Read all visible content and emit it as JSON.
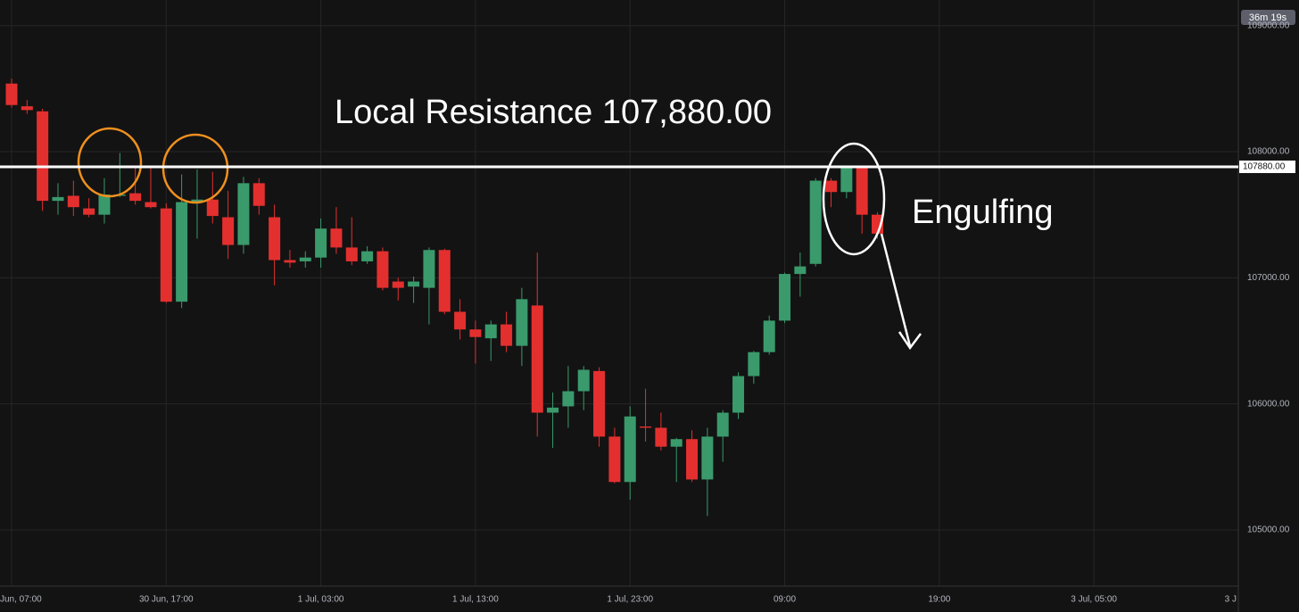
{
  "chart_data": {
    "type": "candlestick",
    "x": [
      0,
      1,
      2,
      3,
      4,
      5,
      6,
      7,
      8,
      9,
      10,
      11,
      12,
      13,
      14,
      15,
      16,
      17,
      18,
      19,
      20,
      21,
      22,
      23,
      24,
      25,
      26,
      27,
      28,
      29,
      30,
      31,
      32,
      33,
      34,
      35,
      36,
      37,
      38,
      39,
      40,
      41,
      42,
      43,
      44,
      45,
      46,
      47,
      48,
      49,
      50,
      51,
      52,
      53,
      54,
      55,
      56
    ],
    "open": [
      108540,
      108360,
      108320,
      107610,
      107650,
      107550,
      107500,
      107650,
      107670,
      107600,
      107550,
      106810,
      107600,
      107620,
      107480,
      107260,
      107750,
      107480,
      107140,
      107130,
      107160,
      107390,
      107240,
      107130,
      107210,
      106970,
      106930,
      106920,
      107220,
      106730,
      106590,
      106520,
      106630,
      106460,
      106780,
      105930,
      105980,
      106100,
      106260,
      105740,
      105380,
      105820,
      105810,
      105660,
      105720,
      105400,
      105740,
      105930,
      106220,
      106410,
      106660,
      107030,
      107110,
      107770,
      107680,
      107870,
      107500
    ],
    "high": [
      108580,
      108410,
      108340,
      107750,
      107770,
      107630,
      107790,
      107990,
      107870,
      107890,
      107590,
      107820,
      107860,
      107840,
      107690,
      107800,
      107790,
      107580,
      107220,
      107210,
      107470,
      107560,
      107480,
      107250,
      107240,
      107000,
      107010,
      107240,
      107230,
      106830,
      106660,
      106660,
      106730,
      106920,
      107200,
      106090,
      106300,
      106300,
      106290,
      105810,
      105980,
      106120,
      105930,
      105730,
      105790,
      105810,
      105950,
      106250,
      106420,
      106700,
      107040,
      107200,
      107790,
      107790,
      107890,
      107890,
      107520
    ],
    "low": [
      108350,
      108300,
      107530,
      107500,
      107490,
      107480,
      107430,
      107640,
      107580,
      107550,
      106800,
      106760,
      107310,
      107430,
      107150,
      107190,
      107500,
      106940,
      107080,
      107080,
      107080,
      107190,
      107100,
      107110,
      106900,
      106820,
      106800,
      106630,
      106710,
      106510,
      106320,
      106340,
      106410,
      106300,
      105740,
      105650,
      105810,
      105950,
      105660,
      105370,
      105240,
      105700,
      105630,
      105380,
      105380,
      105110,
      105540,
      105880,
      106160,
      106390,
      106640,
      106850,
      107090,
      107560,
      107630,
      107350,
      107310
    ],
    "close": [
      108370,
      108330,
      107610,
      107640,
      107560,
      107500,
      107660,
      107660,
      107610,
      107560,
      106810,
      107600,
      107620,
      107490,
      107260,
      107750,
      107570,
      107140,
      107120,
      107160,
      107390,
      107240,
      107130,
      107210,
      106920,
      106920,
      106970,
      107220,
      106730,
      106590,
      106530,
      106630,
      106460,
      106830,
      105930,
      105970,
      106100,
      106270,
      105740,
      105380,
      105900,
      105810,
      105660,
      105720,
      105400,
      105740,
      105930,
      106220,
      106410,
      106660,
      107030,
      107090,
      107770,
      107680,
      107870,
      107500,
      107350
    ],
    "up_color": "#3a9a6c",
    "down_color": "#e3302f",
    "xlim": [
      -0.75,
      79.34
    ],
    "xticks": [
      {
        "value": 0,
        "label": "Jun, 07:00"
      },
      {
        "value": 10,
        "label": "30 Jun, 17:00"
      },
      {
        "value": 20,
        "label": "1 Jul, 03:00"
      },
      {
        "value": 30,
        "label": "1 Jul, 13:00"
      },
      {
        "value": 40,
        "label": "1 Jul, 23:00"
      },
      {
        "value": 50,
        "label": "09:00"
      },
      {
        "value": 60,
        "label": "19:00"
      },
      {
        "value": 70,
        "label": "3 Jul, 05:00"
      },
      {
        "value": 80,
        "label": "3 J"
      }
    ],
    "ylim": [
      104554,
      109203
    ],
    "yticks": [
      {
        "value": 105000,
        "label": "105000.00"
      },
      {
        "value": 106000,
        "label": "106000.00"
      },
      {
        "value": 107000,
        "label": "107000.00"
      },
      {
        "value": 108000,
        "label": "108000.00"
      },
      {
        "value": 109000,
        "label": "109000.00"
      }
    ],
    "grid": true,
    "resistance": {
      "value": 107880,
      "label": "107880.00"
    },
    "annotations": [
      "Local Resistance 107,880.00",
      "Engulfing"
    ],
    "countdown": "36m 19s"
  }
}
